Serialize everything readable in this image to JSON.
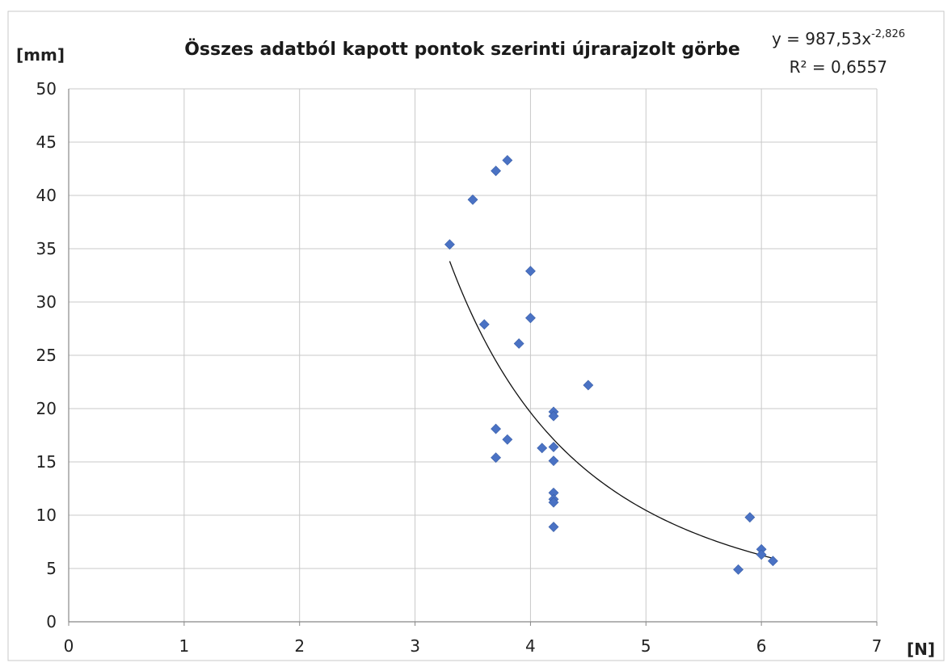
{
  "chart_data": {
    "type": "scatter",
    "title": "Összes adatból kapott pontok szerinti újrarajzolt görbe",
    "xlabel": "[N]",
    "ylabel": "[mm]",
    "xlim": [
      0,
      7
    ],
    "ylim": [
      0,
      50
    ],
    "x_ticks": [
      "0",
      "1",
      "2",
      "3",
      "4",
      "5",
      "6",
      "7"
    ],
    "y_ticks": [
      "0",
      "5",
      "10",
      "15",
      "20",
      "25",
      "30",
      "35",
      "40",
      "45",
      "50"
    ],
    "grid": true,
    "marker": "diamond",
    "marker_color": "#4a72c4",
    "points": [
      {
        "x": 3.3,
        "y": 35.4
      },
      {
        "x": 3.5,
        "y": 39.6
      },
      {
        "x": 3.6,
        "y": 27.9
      },
      {
        "x": 3.7,
        "y": 42.3
      },
      {
        "x": 3.7,
        "y": 18.1
      },
      {
        "x": 3.7,
        "y": 15.4
      },
      {
        "x": 3.8,
        "y": 43.3
      },
      {
        "x": 3.8,
        "y": 17.1
      },
      {
        "x": 3.9,
        "y": 26.1
      },
      {
        "x": 4.0,
        "y": 32.9
      },
      {
        "x": 4.0,
        "y": 28.5
      },
      {
        "x": 4.1,
        "y": 16.3
      },
      {
        "x": 4.2,
        "y": 19.7
      },
      {
        "x": 4.2,
        "y": 19.3
      },
      {
        "x": 4.2,
        "y": 16.4
      },
      {
        "x": 4.2,
        "y": 15.1
      },
      {
        "x": 4.2,
        "y": 12.1
      },
      {
        "x": 4.2,
        "y": 11.5
      },
      {
        "x": 4.2,
        "y": 11.2
      },
      {
        "x": 4.2,
        "y": 8.9
      },
      {
        "x": 4.5,
        "y": 22.2
      },
      {
        "x": 5.8,
        "y": 4.9
      },
      {
        "x": 5.9,
        "y": 9.8
      },
      {
        "x": 6.0,
        "y": 6.8
      },
      {
        "x": 6.0,
        "y": 6.3
      },
      {
        "x": 6.1,
        "y": 5.7
      }
    ],
    "trendline": {
      "type": "power",
      "coefficient": 987.53,
      "exponent": -2.826,
      "x_range": [
        3.3,
        6.1
      ],
      "color": "#111111"
    },
    "equation_text": "y = 987,53x",
    "equation_exponent": "-2,826",
    "r_squared_text": "R² = 0,6557"
  }
}
